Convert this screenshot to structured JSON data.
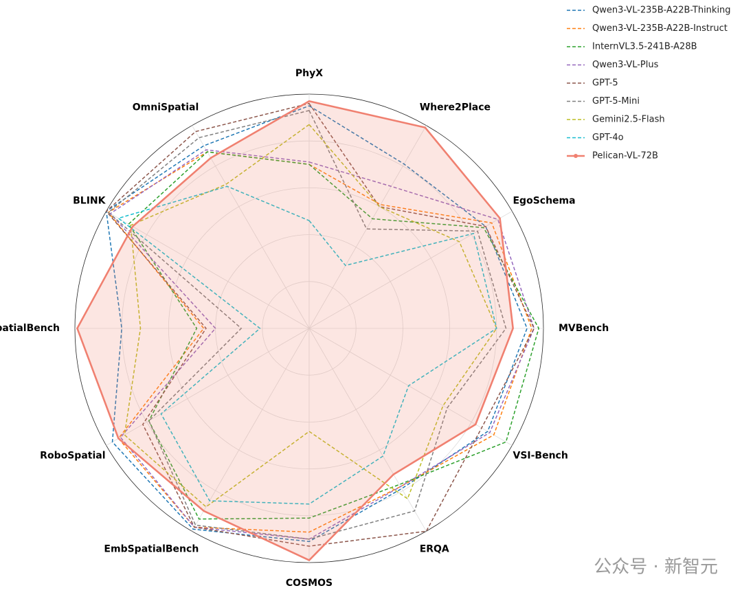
{
  "chart_data": {
    "type": "radar",
    "categories": [
      "PhyX",
      "Where2Place",
      "EgoSchema",
      "MVBench",
      "VSI-Bench",
      "ERQA",
      "COSMOS",
      "EmbSpatialBench",
      "RoboSpatial",
      "RefSpatialBench",
      "BLINK",
      "OmniSpatial"
    ],
    "rlim": [
      0,
      1
    ],
    "rgrid": [
      0.2,
      0.4,
      0.6,
      0.8
    ],
    "series": [
      {
        "name": "Qwen3-VL-235B-A22B-Thinking",
        "color": "#1f77b4",
        "values": [
          0.95,
          0.81,
          0.87,
          0.93,
          0.88,
          0.79,
          0.91,
          0.99,
          0.97,
          0.8,
          1.0,
          0.9
        ]
      },
      {
        "name": "Qwen3-VL-235B-A22B-Instruct",
        "color": "#ff7f0e",
        "values": [
          0.7,
          0.61,
          0.9,
          0.95,
          0.91,
          0.78,
          0.87,
          0.98,
          0.94,
          0.45,
          0.99,
          0.87
        ]
      },
      {
        "name": "InternVL3.5-241B-A28B",
        "color": "#2ca02c",
        "values": [
          0.7,
          0.54,
          0.86,
          0.98,
          0.97,
          0.77,
          0.81,
          0.94,
          0.79,
          0.48,
          0.89,
          0.87
        ]
      },
      {
        "name": "Qwen3-VL-Plus",
        "color": "#9467bd",
        "values": [
          0.71,
          0.7,
          0.93,
          0.96,
          0.89,
          0.78,
          0.9,
          0.98,
          0.93,
          0.4,
          0.98,
          0.88
        ]
      },
      {
        "name": "GPT-5",
        "color": "#8c564b",
        "values": [
          0.96,
          0.6,
          0.87,
          0.96,
          0.85,
          1.0,
          0.93,
          0.98,
          0.82,
          0.44,
          1.0,
          0.97
        ]
      },
      {
        "name": "GPT-5-Mini",
        "color": "#7f7f7f",
        "values": [
          0.93,
          0.49,
          0.83,
          0.84,
          0.68,
          0.9,
          0.9,
          0.97,
          0.79,
          0.29,
          0.99,
          0.94
        ]
      },
      {
        "name": "Gemini2.5-Flash",
        "color": "#bcbd22",
        "values": [
          0.87,
          0.6,
          0.74,
          0.8,
          0.66,
          0.84,
          0.44,
          0.88,
          0.91,
          0.72,
          0.88,
          0.71
        ]
      },
      {
        "name": "GPT-4o",
        "color": "#17becf",
        "values": [
          0.46,
          0.31,
          0.81,
          0.8,
          0.49,
          0.63,
          0.75,
          0.85,
          0.73,
          0.21,
          0.94,
          0.7
        ]
      },
      {
        "name": "Pelican-VL-72B",
        "color": "#f08070",
        "values": [
          0.97,
          0.99,
          0.94,
          0.87,
          0.82,
          0.72,
          0.99,
          0.9,
          0.94,
          0.99,
          0.87,
          0.84
        ],
        "highlight": true
      }
    ],
    "watermark": "公众号 · 新智元"
  }
}
